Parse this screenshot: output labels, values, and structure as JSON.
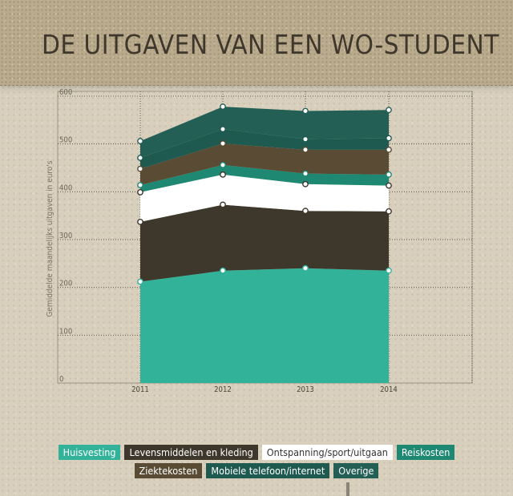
{
  "title": "DE UITGAVEN VAN EEN WO-STUDENT",
  "chart_data": {
    "type": "area",
    "stacked": true,
    "categories": [
      "2011",
      "2012",
      "2013",
      "2014"
    ],
    "ylabel": "Gemiddelde maandelijks uitgaven in euro's",
    "xlabel": "",
    "ylim": [
      0,
      600
    ],
    "yticks": [
      "0",
      "100",
      "200",
      "300",
      "400",
      "500",
      "600"
    ],
    "grid": true,
    "legend_position": "bottom",
    "series": [
      {
        "name": "Huisvesting",
        "values": [
          212,
          235,
          240,
          235
        ],
        "color": "#33b29a"
      },
      {
        "name": "Levensmiddelen en kleding",
        "values": [
          125,
          138,
          120,
          124
        ],
        "color": "#3e372b"
      },
      {
        "name": "Ontspanning/sport/uitgaan",
        "values": [
          62,
          63,
          56,
          54
        ],
        "color": "#ffffff"
      },
      {
        "name": "Reiskosten",
        "values": [
          15,
          20,
          22,
          23
        ],
        "color": "#1e8873"
      },
      {
        "name": "Ziektekosten",
        "values": [
          34,
          45,
          50,
          52
        ],
        "color": "#594b34"
      },
      {
        "name": "Mobiele telefoon/internet",
        "values": [
          23,
          30,
          22,
          24
        ],
        "color": "#1e5a4f"
      },
      {
        "name": "Overige",
        "values": [
          35,
          47,
          59,
          59
        ],
        "color": "#245f55"
      }
    ]
  },
  "legend": [
    {
      "label": "Huisvesting",
      "bg": "#33b29a",
      "fg": "#ffffff"
    },
    {
      "label": "Levensmiddelen en kleding",
      "bg": "#3e372b",
      "fg": "#ffffff"
    },
    {
      "label": "Ontspanning/sport/uitgaan",
      "bg": "#ffffff",
      "fg": "#333333"
    },
    {
      "label": "Reiskosten",
      "bg": "#1e8873",
      "fg": "#ffffff"
    },
    {
      "label": "Ziektekosten",
      "bg": "#594b34",
      "fg": "#ffffff"
    },
    {
      "label": "Mobiele telefoon/internet",
      "bg": "#1e5a4f",
      "fg": "#ffffff"
    },
    {
      "label": "Overige",
      "bg": "#245f55",
      "fg": "#ffffff"
    }
  ]
}
